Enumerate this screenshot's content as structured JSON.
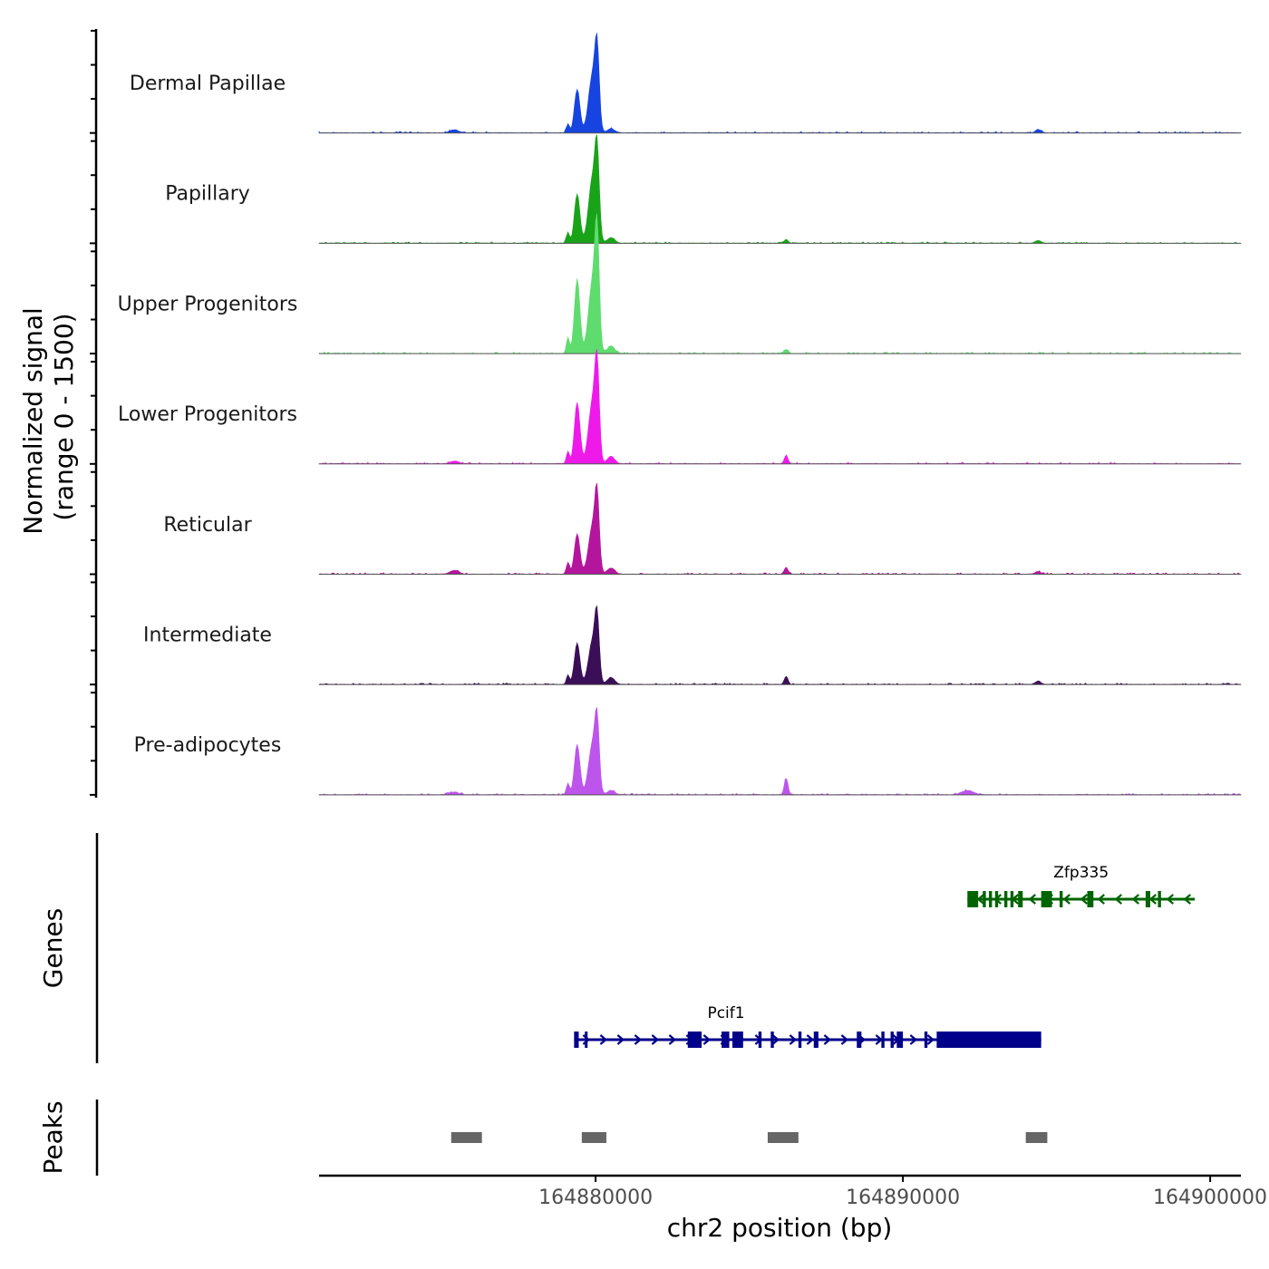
{
  "chart_data": {
    "type": "area",
    "chromosome": "chr2",
    "xlabel": "chr2 position (bp)",
    "ylabel": "Normalized signal\n(range 0 - 1500)",
    "ylabel_lines": [
      "Normalized signal",
      "(range 0 - 1500)"
    ],
    "ylim": [
      0,
      1500
    ],
    "xlim": [
      164871000,
      164901000
    ],
    "x_ticks": [
      164880000,
      164890000,
      164900000
    ],
    "x_tick_labels": [
      "164880000",
      "164890000",
      "164900000"
    ],
    "tracks": [
      {
        "name": "Dermal Papillae",
        "color": "#1744e0",
        "peaks": [
          [
            164875400,
            45,
            140
          ],
          [
            164879100,
            130,
            50
          ],
          [
            164879400,
            640,
            90
          ],
          [
            164879900,
            840,
            130
          ],
          [
            164880050,
            1000,
            70
          ],
          [
            164880500,
            60,
            120
          ],
          [
            164894400,
            50,
            90
          ]
        ]
      },
      {
        "name": "Papillary",
        "color": "#19a319",
        "peaks": [
          [
            164879100,
            160,
            50
          ],
          [
            164879400,
            720,
            90
          ],
          [
            164879900,
            940,
            130
          ],
          [
            164880050,
            1080,
            70
          ],
          [
            164880500,
            80,
            120
          ],
          [
            164886200,
            55,
            60
          ],
          [
            164894400,
            40,
            90
          ]
        ]
      },
      {
        "name": "Upper Progenitors",
        "color": "#5edc6e",
        "peaks": [
          [
            164879100,
            230,
            50
          ],
          [
            164879400,
            1080,
            90
          ],
          [
            164879900,
            1050,
            130
          ],
          [
            164880050,
            1490,
            70
          ],
          [
            164880500,
            110,
            120
          ],
          [
            164886200,
            60,
            60
          ]
        ]
      },
      {
        "name": "Lower Progenitors",
        "color": "#ef1aea",
        "peaks": [
          [
            164875400,
            40,
            140
          ],
          [
            164879100,
            180,
            50
          ],
          [
            164879400,
            900,
            90
          ],
          [
            164879900,
            910,
            130
          ],
          [
            164880050,
            1190,
            70
          ],
          [
            164880500,
            110,
            120
          ],
          [
            164886200,
            120,
            60
          ]
        ]
      },
      {
        "name": "Reticular",
        "color": "#b3169c",
        "peaks": [
          [
            164875400,
            55,
            140
          ],
          [
            164879100,
            170,
            50
          ],
          [
            164879400,
            590,
            90
          ],
          [
            164879900,
            700,
            130
          ],
          [
            164880050,
            960,
            70
          ],
          [
            164880500,
            90,
            120
          ],
          [
            164886200,
            100,
            60
          ],
          [
            164894400,
            35,
            90
          ]
        ]
      },
      {
        "name": "Intermediate",
        "color": "#3b0f57",
        "peaks": [
          [
            164879100,
            140,
            50
          ],
          [
            164879400,
            610,
            90
          ],
          [
            164879900,
            630,
            130
          ],
          [
            164880050,
            810,
            70
          ],
          [
            164880500,
            100,
            120
          ],
          [
            164886200,
            120,
            60
          ],
          [
            164894400,
            50,
            90
          ]
        ]
      },
      {
        "name": "Pre-adipocytes",
        "color": "#bd55ec",
        "peaks": [
          [
            164879100,
            170,
            50
          ],
          [
            164879400,
            740,
            90
          ],
          [
            164879900,
            740,
            130
          ],
          [
            164880050,
            880,
            70
          ],
          [
            164880500,
            60,
            120
          ],
          [
            164886200,
            240,
            60
          ],
          [
            164892100,
            60,
            200
          ],
          [
            164875400,
            40,
            140
          ]
        ]
      }
    ],
    "genes_track_label": "Genes",
    "genes": [
      {
        "name": "Zfp335",
        "strand": "-",
        "color": "#006400",
        "start": 164892100,
        "end": 164899500,
        "exons": [
          [
            164892100,
            164892450
          ],
          [
            164892600,
            164892700
          ],
          [
            164892800,
            164892900
          ],
          [
            164893000,
            164893100
          ],
          [
            164893300,
            164893400
          ],
          [
            164893500,
            164893600
          ],
          [
            164893750,
            164893900
          ],
          [
            164894500,
            164894850
          ],
          [
            164895100,
            164895200
          ],
          [
            164896000,
            164896200
          ],
          [
            164897900,
            164898050
          ],
          [
            164898300,
            164898400
          ]
        ]
      },
      {
        "name": "Pcif1",
        "strand": "+",
        "color": "#00008b",
        "start": 164879300,
        "end": 164894500,
        "exons": [
          [
            164879300,
            164879450
          ],
          [
            164879650,
            164879700
          ],
          [
            164883000,
            164883450
          ],
          [
            164884100,
            164884350
          ],
          [
            164884450,
            164884800
          ],
          [
            164885300,
            164885400
          ],
          [
            164885700,
            164885800
          ],
          [
            164886600,
            164886700
          ],
          [
            164887100,
            164887250
          ],
          [
            164888500,
            164888650
          ],
          [
            164889300,
            164889400
          ],
          [
            164889600,
            164889700
          ],
          [
            164889800,
            164890000
          ],
          [
            164890700,
            164890800
          ],
          [
            164891100,
            164894500
          ]
        ]
      }
    ],
    "peaks_track_label": "Peaks",
    "peak_regions": [
      [
        164875300,
        164876300
      ],
      [
        164879550,
        164880350
      ],
      [
        164885600,
        164886600
      ],
      [
        164894000,
        164894700
      ]
    ]
  }
}
